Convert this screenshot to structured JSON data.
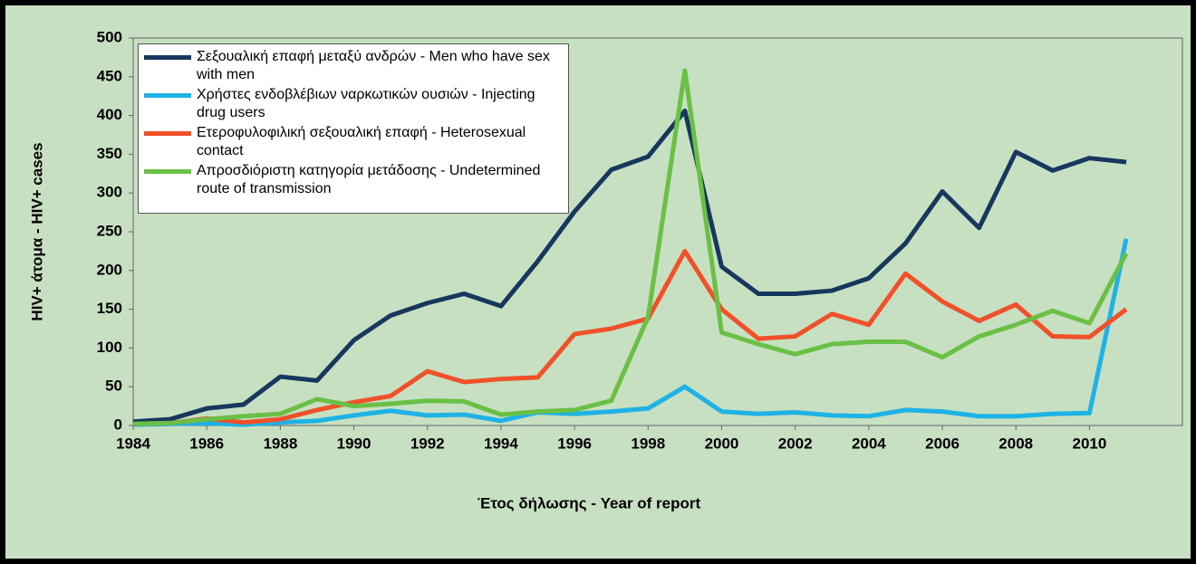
{
  "chart_data": {
    "type": "line",
    "ylabel": "HIV+ άτομα - HIV+ cases",
    "xlabel": "Έτος δήλωσης - Year of report",
    "x": [
      1984,
      1985,
      1986,
      1987,
      1988,
      1989,
      1990,
      1991,
      1992,
      1993,
      1994,
      1995,
      1996,
      1997,
      1998,
      1999,
      2000,
      2001,
      2002,
      2003,
      2004,
      2005,
      2006,
      2007,
      2008,
      2009,
      2010,
      2011
    ],
    "xlim": [
      1984,
      2011
    ],
    "xticks": [
      1984,
      1986,
      1988,
      1990,
      1992,
      1994,
      1996,
      1998,
      2000,
      2002,
      2004,
      2006,
      2008,
      2010
    ],
    "ylim": [
      0,
      500
    ],
    "yticks": [
      0,
      50,
      100,
      150,
      200,
      250,
      300,
      350,
      400,
      450,
      500
    ],
    "grid": false,
    "legend": "upper left",
    "series": [
      {
        "name": "Σεξουαλική επαφή μεταξύ ανδρών - Men who have sex with men",
        "color": "#17375e",
        "values": [
          5,
          8,
          22,
          27,
          63,
          58,
          110,
          142,
          158,
          170,
          154,
          212,
          276,
          330,
          347,
          406,
          205,
          170,
          170,
          174,
          190,
          235,
          302,
          255,
          353,
          329,
          345,
          340
        ]
      },
      {
        "name": "Χρήστες ενδοβλέβιων ναρκωτικών ουσιών - Injecting drug users",
        "color": "#1fb2e6",
        "values": [
          1,
          2,
          3,
          1,
          4,
          6,
          13,
          19,
          13,
          14,
          6,
          17,
          15,
          18,
          22,
          50,
          18,
          15,
          17,
          13,
          12,
          20,
          18,
          12,
          12,
          15,
          16,
          241
        ]
      },
      {
        "name": "Ετεροφυλοφιλική σεξουαλική επαφή - Heterosexual contact",
        "color": "#f0502a",
        "values": [
          2,
          3,
          9,
          4,
          8,
          20,
          30,
          38,
          70,
          56,
          60,
          62,
          118,
          125,
          138,
          225,
          150,
          112,
          115,
          144,
          130,
          196,
          160,
          135,
          156,
          115,
          114,
          150
        ]
      },
      {
        "name": "Απροσδιόριστη κατηγορία μετάδοσης - Undetermined route of transmission",
        "color": "#6abf45",
        "values": [
          2,
          3,
          8,
          12,
          15,
          34,
          25,
          28,
          32,
          31,
          14,
          18,
          20,
          32,
          140,
          458,
          120,
          105,
          92,
          105,
          108,
          108,
          88,
          115,
          130,
          148,
          132,
          222
        ]
      }
    ]
  }
}
